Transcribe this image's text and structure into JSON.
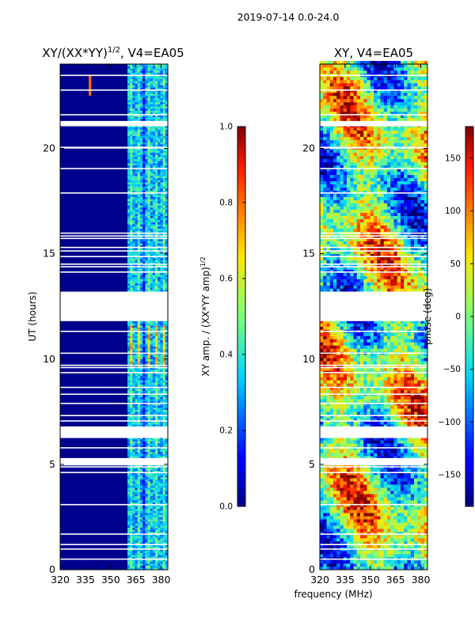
{
  "chart_data": {
    "type": "heatmap",
    "suptitle": "2019-07-14 0.0-24.0",
    "xlabel": "frequency (MHz)",
    "ylabel": "UT (hours)",
    "xlim": [
      320,
      384
    ],
    "ylim": [
      0,
      24
    ],
    "xticks": [
      "320",
      "335",
      "350",
      "365",
      "380"
    ],
    "xtick_values": [
      320,
      335,
      350,
      365,
      380
    ],
    "yticks": [
      "0",
      "5",
      "10",
      "15",
      "20"
    ],
    "ytick_values": [
      0,
      5,
      10,
      15,
      20
    ],
    "gaps": [
      [
        11.8,
        13.2
      ],
      [
        6.25,
        6.8
      ],
      [
        4.95,
        5.3
      ],
      [
        21.05,
        21.3
      ]
    ],
    "panels": [
      {
        "title_prefix": "XY/(XX*YY)",
        "title_sup": "1/2",
        "title_suffix": ", V4=EA05",
        "quantity": "amplitude",
        "colorbar": {
          "label": "XY amp. / (XX*YY amp)",
          "label_sup": "1/2",
          "vmin": 0.0,
          "vmax": 1.0,
          "ticks": [
            "0.0",
            "0.2",
            "0.4",
            "0.6",
            "0.8",
            "1.0"
          ],
          "tick_values": [
            0.0,
            0.2,
            0.4,
            0.6,
            0.8,
            1.0
          ]
        },
        "high_channels_mhz": [
          362,
          366,
          372,
          377,
          381
        ]
      },
      {
        "title": "XY, V4=EA05",
        "quantity": "phase",
        "colorbar": {
          "label": "phase (deg)",
          "vmin": -180,
          "vmax": 180,
          "ticks": [
            "−150",
            "−100",
            "−50",
            "0",
            "50",
            "100",
            "150"
          ],
          "tick_values": [
            -150,
            -100,
            -50,
            0,
            50,
            100,
            150
          ]
        }
      }
    ]
  }
}
